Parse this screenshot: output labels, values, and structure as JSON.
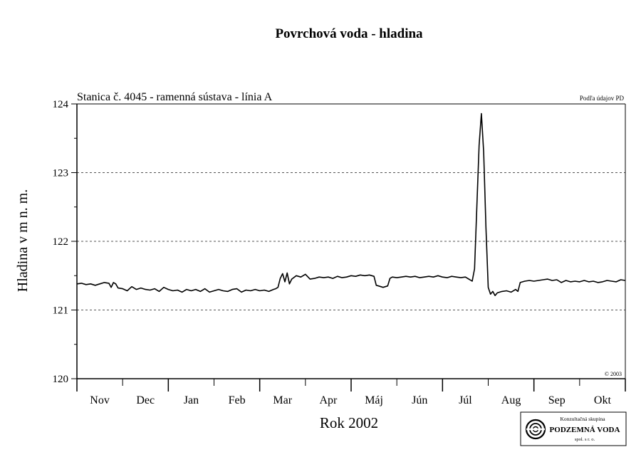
{
  "chart_data": {
    "type": "line",
    "title": "Povrchová voda - hladina",
    "subtitle": "Stanica č. 4045 - ramenná sústava - línia A",
    "source_note": "Podľa údajov PD",
    "copyright": "© 2003",
    "xlabel": "Rok 2002",
    "ylabel": "Hladina v m n. m.",
    "ylim": [
      120,
      124
    ],
    "yticks": [
      "120",
      "121",
      "122",
      "123",
      "124"
    ],
    "y_gridlines": [
      121,
      122,
      123
    ],
    "x_range": [
      0,
      12
    ],
    "months": [
      "Nov",
      "Dec",
      "Jan",
      "Feb",
      "Mar",
      "Apr",
      "Máj",
      "Jún",
      "Júl",
      "Aug",
      "Sep",
      "Okt"
    ],
    "grid": "dashed horizontal at 121, 122, 123",
    "series": [
      {
        "x": [
          0.0,
          0.1,
          0.2,
          0.3,
          0.4,
          0.5,
          0.6,
          0.7,
          0.75,
          0.8,
          0.85,
          0.9,
          1.0,
          1.1,
          1.2,
          1.3,
          1.4,
          1.5,
          1.6,
          1.7,
          1.8,
          1.9,
          2.0,
          2.1,
          2.2,
          2.3,
          2.4,
          2.5,
          2.6,
          2.7,
          2.8,
          2.9,
          3.0,
          3.1,
          3.2,
          3.3,
          3.4,
          3.5,
          3.6,
          3.7,
          3.8,
          3.9,
          4.0,
          4.1,
          4.2,
          4.3,
          4.35,
          4.4,
          4.45,
          4.5,
          4.55,
          4.6,
          4.65,
          4.7,
          4.8,
          4.9,
          5.0,
          5.1,
          5.2,
          5.3,
          5.4,
          5.5,
          5.6,
          5.7,
          5.8,
          5.9,
          6.0,
          6.1,
          6.2,
          6.3,
          6.4,
          6.5,
          6.55,
          6.6,
          6.7,
          6.8,
          6.85,
          6.9,
          7.0,
          7.1,
          7.2,
          7.3,
          7.4,
          7.5,
          7.6,
          7.7,
          7.8,
          7.9,
          8.0,
          8.1,
          8.2,
          8.3,
          8.4,
          8.5,
          8.6,
          8.65,
          8.7,
          8.75,
          8.8,
          8.85,
          8.9,
          8.95,
          9.0,
          9.05,
          9.1,
          9.15,
          9.2,
          9.3,
          9.4,
          9.5,
          9.6,
          9.65,
          9.7,
          9.8,
          9.9,
          10.0,
          10.1,
          10.2,
          10.3,
          10.4,
          10.5,
          10.6,
          10.7,
          10.8,
          10.9,
          11.0,
          11.1,
          11.2,
          11.3,
          11.4,
          11.5,
          11.6,
          11.7,
          11.8,
          11.9,
          12.0
        ],
        "values": [
          121.38,
          121.39,
          121.37,
          121.38,
          121.36,
          121.38,
          121.4,
          121.39,
          121.33,
          121.4,
          121.38,
          121.32,
          121.31,
          121.28,
          121.34,
          121.3,
          121.32,
          121.3,
          121.29,
          121.31,
          121.27,
          121.33,
          121.3,
          121.28,
          121.29,
          121.26,
          121.3,
          121.28,
          121.3,
          121.27,
          121.31,
          121.26,
          121.28,
          121.3,
          121.28,
          121.27,
          121.3,
          121.31,
          121.26,
          121.29,
          121.28,
          121.3,
          121.28,
          121.29,
          121.27,
          121.3,
          121.31,
          121.33,
          121.46,
          121.53,
          121.41,
          121.54,
          121.38,
          121.45,
          121.5,
          121.48,
          121.52,
          121.45,
          121.46,
          121.48,
          121.47,
          121.48,
          121.46,
          121.49,
          121.47,
          121.48,
          121.5,
          121.49,
          121.51,
          121.5,
          121.51,
          121.49,
          121.36,
          121.35,
          121.33,
          121.35,
          121.46,
          121.48,
          121.47,
          121.48,
          121.49,
          121.48,
          121.49,
          121.47,
          121.48,
          121.49,
          121.48,
          121.5,
          121.48,
          121.47,
          121.49,
          121.48,
          121.47,
          121.48,
          121.44,
          121.42,
          121.6,
          122.5,
          123.4,
          123.86,
          123.3,
          122.2,
          121.33,
          121.23,
          121.27,
          121.21,
          121.25,
          121.27,
          121.28,
          121.26,
          121.3,
          121.27,
          121.4,
          121.42,
          121.43,
          121.42,
          121.43,
          121.44,
          121.45,
          121.43,
          121.44,
          121.4,
          121.43,
          121.41,
          121.42,
          121.41,
          121.43,
          121.41,
          121.42,
          121.4,
          121.41,
          121.43,
          121.42,
          121.41,
          121.44,
          121.43
        ]
      }
    ]
  },
  "logo": {
    "top_text": "Konzultačná skupina",
    "name": "PODZEMNÁ VODA",
    "bottom_text": "spol. s r. o."
  }
}
